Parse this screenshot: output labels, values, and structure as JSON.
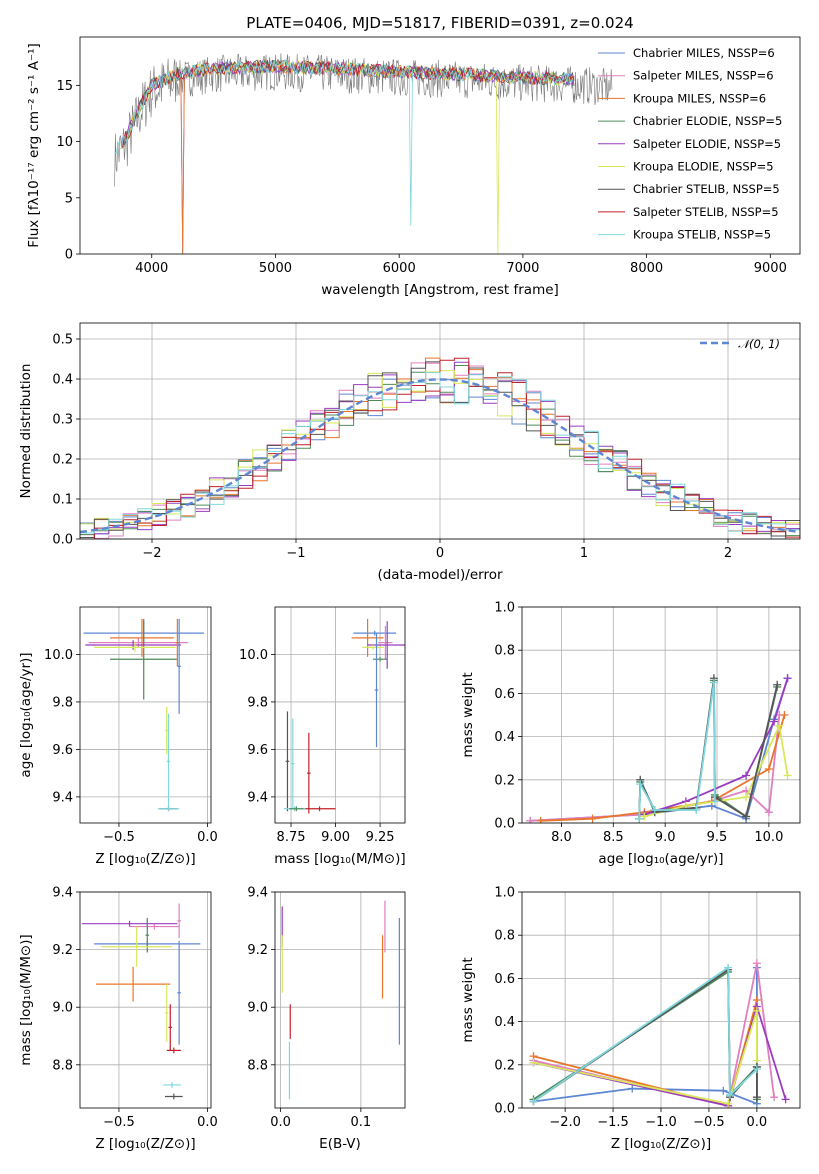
{
  "figure_title": "PLATE=0406, MJD=51817, FIBERID=0391, z=0.024",
  "colors": [
    "#5f86d2",
    "#e07fbf",
    "#e8762a",
    "#4f8a5a",
    "#9a3cc0",
    "#d9e85a",
    "#555555",
    "#c0212a",
    "#7fd7dd"
  ],
  "chart_data": [
    {
      "id": "spectrum",
      "type": "line",
      "xlabel": "wavelength [Angstrom, rest frame]",
      "ylabel": "Flux [fλ10⁻¹⁷ erg cm⁻² s⁻¹ A⁻¹]",
      "xlim": [
        3420,
        9240
      ],
      "ylim": [
        0,
        19.3
      ],
      "xticks": [
        "4000",
        "5000",
        "6000",
        "7000",
        "8000",
        "9000"
      ],
      "yticks": [
        "0",
        "5",
        "10",
        "15"
      ],
      "grid": false,
      "legend_position": "upper-right",
      "series": [
        {
          "name": "Chabrier MILES, NSSP=6",
          "legend": "Chabrier MILES, N_SSP=6"
        },
        {
          "name": "Salpeter MILES, NSSP=6",
          "legend": "Salpeter MILES, N_SSP=6"
        },
        {
          "name": "Kroupa MILES, NSSP=6",
          "legend": "Kroupa MILES, N_SSP=6"
        },
        {
          "name": "Chabrier ELODIE, NSSP=5",
          "legend": "Chabrier ELODIE, N_SSP=5"
        },
        {
          "name": "Salpeter ELODIE, NSSP=5",
          "legend": "Salpeter ELODIE, N_SSP=5"
        },
        {
          "name": "Kroupa ELODIE, NSSP=5",
          "legend": "Kroupa ELODIE, N_SSP=5"
        },
        {
          "name": "Chabrier STELIB, NSSP=5",
          "legend": "Chabrier STELIB, N_SSP=5"
        },
        {
          "name": "Salpeter STELIB, NSSP=5",
          "legend": "Salpeter STELIB, N_SSP=5"
        },
        {
          "name": "Kroupa STELIB, NSSP=5",
          "legend": "Kroupa STELIB, N_SSP=5"
        }
      ],
      "data_continuum": [
        [
          3700,
          8.5
        ],
        [
          3800,
          10
        ],
        [
          3900,
          12.5
        ],
        [
          4000,
          14.5
        ],
        [
          4200,
          15.5
        ],
        [
          4500,
          16
        ],
        [
          5000,
          16.2
        ],
        [
          5500,
          16
        ],
        [
          6000,
          15.7
        ],
        [
          6500,
          15.5
        ],
        [
          7000,
          15.2
        ],
        [
          7500,
          15
        ],
        [
          7700,
          14.8
        ]
      ]
    },
    {
      "id": "residuals",
      "type": "histogram",
      "xlabel": "(data-model)/error",
      "ylabel": "Normed distribution",
      "xlim": [
        -2.5,
        2.5
      ],
      "ylim": [
        0,
        0.54
      ],
      "xticks": [
        "−2",
        "−1",
        "0",
        "1",
        "2"
      ],
      "yticks": [
        "0.0",
        "0.1",
        "0.2",
        "0.3",
        "0.4",
        "0.5"
      ],
      "grid": true,
      "reference_label": "𝒩(0, 1)",
      "reference_sigma": 1.0,
      "legend_position": "upper-right"
    },
    {
      "id": "age-vs-Z",
      "type": "errorbar",
      "xlabel": "Z [log₁₀(Z/Z⊙)]",
      "ylabel": "age  [log₁₀(age/yr)]",
      "xlim": [
        -0.72,
        0.02
      ],
      "ylim": [
        9.29,
        10.2
      ],
      "xticks": [
        "−0.5",
        "0.0"
      ],
      "yticks": [
        "9.4",
        "9.6",
        "9.8",
        "10.0"
      ],
      "grid": true,
      "points": [
        {
          "x": -0.36,
          "xerr": 0.34,
          "y": 10.09,
          "yerr": 0.05,
          "c": 0
        },
        {
          "x": -0.39,
          "xerr": 0.28,
          "y": 10.05,
          "yerr": 0.02,
          "c": 1
        },
        {
          "x": -0.37,
          "xerr": 0.18,
          "y": 10.07,
          "yerr": 0.08,
          "c": 2
        },
        {
          "x": -0.36,
          "xerr": 0.19,
          "y": 9.98,
          "yerr": 0.17,
          "c": 3
        },
        {
          "x": -0.42,
          "xerr": 0.27,
          "y": 10.04,
          "yerr": 0.02,
          "c": 4
        },
        {
          "x": -0.41,
          "xerr": 0.23,
          "y": 10.03,
          "yerr": 0.02,
          "c": 5
        },
        {
          "x": -0.17,
          "xerr": 0.01,
          "y": 10.05,
          "yerr": 0.1,
          "c": 2
        },
        {
          "x": -0.16,
          "xerr": 0.01,
          "y": 9.95,
          "yerr": 0.2,
          "c": 0
        },
        {
          "x": -0.22,
          "xerr": 0.05,
          "y": 9.35,
          "yerr": 0.01,
          "c": 6
        },
        {
          "x": -0.22,
          "xerr": 0.06,
          "y": 9.35,
          "yerr": 0.01,
          "c": 8
        },
        {
          "x": -0.23,
          "xerr": 0.01,
          "y": 9.68,
          "yerr": 0.1,
          "c": 5
        },
        {
          "x": -0.22,
          "xerr": 0.01,
          "y": 9.55,
          "yerr": 0.2,
          "c": 8
        }
      ]
    },
    {
      "id": "age-vs-mass",
      "type": "errorbar",
      "xlabel": "mass [log₁₀(M/M⊙)]",
      "ylabel": "",
      "xlim": [
        8.66,
        9.39
      ],
      "ylim": [
        9.29,
        10.2
      ],
      "xticks": [
        "8.75",
        "9.00",
        "9.25"
      ],
      "yticks": [
        "9.4",
        "9.6",
        "9.8",
        "10.0"
      ],
      "grid": true,
      "points": [
        {
          "x": 9.22,
          "xerr": 0.12,
          "y": 10.09,
          "yerr": 0.01,
          "c": 0
        },
        {
          "x": 9.28,
          "xerr": 0.04,
          "y": 10.05,
          "yerr": 0.07,
          "c": 1
        },
        {
          "x": 9.18,
          "xerr": 0.09,
          "y": 10.07,
          "yerr": 0.08,
          "c": 2
        },
        {
          "x": 9.25,
          "xerr": 0.04,
          "y": 9.98,
          "yerr": 0.01,
          "c": 3
        },
        {
          "x": 9.29,
          "xerr": 0.11,
          "y": 10.04,
          "yerr": 0.1,
          "c": 4
        },
        {
          "x": 9.21,
          "xerr": 0.06,
          "y": 10.03,
          "yerr": 0.01,
          "c": 5
        },
        {
          "x": 9.23,
          "xerr": 0.01,
          "y": 9.85,
          "yerr": 0.24,
          "c": 0
        },
        {
          "x": 8.73,
          "xerr": 0.01,
          "y": 9.55,
          "yerr": 0.21,
          "c": 6
        },
        {
          "x": 8.76,
          "xerr": 0.01,
          "y": 9.54,
          "yerr": 0.19,
          "c": 8
        },
        {
          "x": 8.85,
          "xerr": 0.01,
          "y": 9.5,
          "yerr": 0.17,
          "c": 7
        },
        {
          "x": 8.91,
          "xerr": 0.09,
          "y": 9.35,
          "yerr": 0.01,
          "c": 7
        },
        {
          "x": 8.77,
          "xerr": 0.06,
          "y": 9.35,
          "yerr": 0.01,
          "c": 8
        },
        {
          "x": 8.78,
          "xerr": 0.04,
          "y": 9.35,
          "yerr": 0.01,
          "c": 3
        }
      ]
    },
    {
      "id": "mass-weight-vs-age",
      "type": "line",
      "xlabel": "age  [log₁₀(age/yr)]",
      "ylabel": "mass weight",
      "xlim": [
        7.62,
        10.3
      ],
      "ylim": [
        0,
        1.0
      ],
      "xticks": [
        "8.0",
        "8.5",
        "9.0",
        "9.5",
        "10.0"
      ],
      "yticks": [
        "0.0",
        "0.2",
        "0.4",
        "0.6",
        "0.8",
        "1.0"
      ],
      "grid": true,
      "series": [
        {
          "c": 0,
          "x": [
            7.7,
            8.8,
            9.45,
            9.78,
            10.05,
            10.18
          ],
          "y": [
            0.01,
            0.04,
            0.08,
            0.02,
            0.48,
            0.67
          ]
        },
        {
          "c": 1,
          "x": [
            7.7,
            8.8,
            9.45,
            9.78,
            10.0,
            10.1
          ],
          "y": [
            0.01,
            0.04,
            0.1,
            0.15,
            0.05,
            0.5
          ]
        },
        {
          "c": 2,
          "x": [
            7.8,
            8.3,
            8.8,
            9.45,
            10.0,
            10.15
          ],
          "y": [
            0.01,
            0.02,
            0.05,
            0.1,
            0.25,
            0.5
          ]
        },
        {
          "c": 3,
          "x": [
            8.75,
            8.76,
            8.9,
            9.3,
            9.47,
            9.48,
            9.78,
            10.08
          ],
          "y": [
            0.02,
            0.19,
            0.06,
            0.07,
            0.66,
            0.13,
            0.03,
            0.63
          ]
        },
        {
          "c": 4,
          "x": [
            8.8,
            9.2,
            9.78,
            10.05,
            10.18
          ],
          "y": [
            0.04,
            0.1,
            0.22,
            0.47,
            0.67
          ]
        },
        {
          "c": 5,
          "x": [
            8.8,
            9.2,
            9.78,
            10.1,
            10.18
          ],
          "y": [
            0.03,
            0.08,
            0.12,
            0.45,
            0.22
          ]
        },
        {
          "c": 6,
          "x": [
            8.75,
            8.76,
            8.9,
            9.3,
            9.47,
            9.48,
            9.78,
            10.08
          ],
          "y": [
            0.02,
            0.2,
            0.05,
            0.07,
            0.67,
            0.12,
            0.03,
            0.64
          ]
        },
        {
          "c": 8,
          "x": [
            8.75,
            8.76,
            8.9,
            9.3,
            9.47,
            9.48
          ],
          "y": [
            0.02,
            0.18,
            0.06,
            0.06,
            0.65,
            0.1
          ]
        }
      ]
    },
    {
      "id": "mass-vs-Z",
      "type": "errorbar",
      "xlabel": "Z [log₁₀(Z/Z⊙)]",
      "ylabel": "mass [log₁₀(M/M⊙)]",
      "xlim": [
        -0.72,
        0.02
      ],
      "ylim": [
        8.65,
        9.4
      ],
      "xticks": [
        "−0.5",
        "0.0"
      ],
      "yticks": [
        "8.8",
        "9.0",
        "9.2",
        "9.4"
      ],
      "grid": true,
      "points": [
        {
          "x": -0.34,
          "xerr": 0.3,
          "y": 9.22,
          "yerr": 0.01,
          "c": 0
        },
        {
          "x": -0.3,
          "xerr": 0.14,
          "y": 9.28,
          "yerr": 0.01,
          "c": 1
        },
        {
          "x": -0.42,
          "xerr": 0.21,
          "y": 9.08,
          "yerr": 0.06,
          "c": 2
        },
        {
          "x": -0.34,
          "xerr": 0.01,
          "y": 9.25,
          "yerr": 0.06,
          "c": 3
        },
        {
          "x": -0.44,
          "xerr": 0.27,
          "y": 9.29,
          "yerr": 0.01,
          "c": 4
        },
        {
          "x": -0.4,
          "xerr": 0.2,
          "y": 9.21,
          "yerr": 0.07,
          "c": 5
        },
        {
          "x": -0.16,
          "xerr": 0.01,
          "y": 9.3,
          "yerr": 0.06,
          "c": 1
        },
        {
          "x": -0.16,
          "xerr": 0.01,
          "y": 9.05,
          "yerr": 0.18,
          "c": 0
        },
        {
          "x": -0.23,
          "xerr": 0.01,
          "y": 8.98,
          "yerr": 0.1,
          "c": 5
        },
        {
          "x": -0.19,
          "xerr": 0.04,
          "y": 8.85,
          "yerr": 0.01,
          "c": 7
        },
        {
          "x": -0.21,
          "xerr": 0.01,
          "y": 8.93,
          "yerr": 0.08,
          "c": 7
        },
        {
          "x": -0.19,
          "xerr": 0.05,
          "y": 8.69,
          "yerr": 0.01,
          "c": 6
        },
        {
          "x": -0.2,
          "xerr": 0.05,
          "y": 8.73,
          "yerr": 0.01,
          "c": 8
        }
      ]
    },
    {
      "id": "mass-vs-EBV",
      "type": "errorbar",
      "xlabel": "E(B-V)",
      "ylabel": "",
      "xlim": [
        -0.007,
        0.155
      ],
      "ylim": [
        8.65,
        9.4
      ],
      "xticks": [
        "0.0",
        "0.1"
      ],
      "yticks": [
        "8.8",
        "9.0",
        "9.2",
        "9.4"
      ],
      "grid": true,
      "points": [
        {
          "x": 0.002,
          "xerr": 0,
          "y": 9.28,
          "yerr": 0.07,
          "c": 4
        },
        {
          "x": 0.002,
          "xerr": 0,
          "y": 9.15,
          "yerr": 0.1,
          "c": 5
        },
        {
          "x": 0.012,
          "xerr": 0,
          "y": 8.95,
          "yerr": 0.06,
          "c": 7
        },
        {
          "x": 0.011,
          "xerr": 0,
          "y": 8.78,
          "yerr": 0.1,
          "c": 8
        },
        {
          "x": 0.13,
          "xerr": 0,
          "y": 9.28,
          "yerr": 0.09,
          "c": 1
        },
        {
          "x": 0.127,
          "xerr": 0,
          "y": 9.14,
          "yerr": 0.11,
          "c": 2
        },
        {
          "x": 0.148,
          "xerr": 0,
          "y": 9.09,
          "yerr": 0.22,
          "c": 0
        }
      ]
    },
    {
      "id": "mass-weight-vs-Z",
      "type": "line",
      "xlabel": "Z [log₁₀(Z/Z⊙)]",
      "ylabel": "mass weight",
      "xlim": [
        -2.45,
        0.45
      ],
      "ylim": [
        0,
        1.0
      ],
      "xticks": [
        "−2.0",
        "−1.5",
        "−1.0",
        "−0.5",
        "0.0"
      ],
      "yticks": [
        "0.0",
        "0.2",
        "0.4",
        "0.6",
        "0.8",
        "1.0"
      ],
      "grid": true,
      "series": [
        {
          "c": 0,
          "x": [
            -2.33,
            -1.3,
            -0.35,
            0.0,
            0.0
          ],
          "y": [
            0.03,
            0.09,
            0.08,
            0.02,
            0.65
          ]
        },
        {
          "c": 1,
          "x": [
            -2.33,
            -0.3,
            0.0,
            0.18
          ],
          "y": [
            0.22,
            0.01,
            0.67,
            0.05
          ]
        },
        {
          "c": 2,
          "x": [
            -2.33,
            -0.3,
            0.0
          ],
          "y": [
            0.24,
            0.01,
            0.5
          ]
        },
        {
          "c": 3,
          "x": [
            -2.33,
            -0.3,
            -0.28,
            0.0,
            0.0
          ],
          "y": [
            0.04,
            0.63,
            0.06,
            0.19,
            0.04
          ]
        },
        {
          "c": 4,
          "x": [
            -2.33,
            -0.3,
            0.0,
            0.3
          ],
          "y": [
            0.21,
            0.01,
            0.47,
            0.04
          ]
        },
        {
          "c": 5,
          "x": [
            -2.33,
            -0.3,
            0.0,
            0.0
          ],
          "y": [
            0.21,
            0.02,
            0.45,
            0.22
          ]
        },
        {
          "c": 6,
          "x": [
            -2.33,
            -0.3,
            -0.28,
            0.0,
            0.0
          ],
          "y": [
            0.03,
            0.64,
            0.05,
            0.19,
            0.05
          ]
        },
        {
          "c": 8,
          "x": [
            -2.33,
            -0.3,
            -0.28,
            0.0
          ],
          "y": [
            0.03,
            0.65,
            0.06,
            0.18
          ]
        }
      ]
    }
  ]
}
